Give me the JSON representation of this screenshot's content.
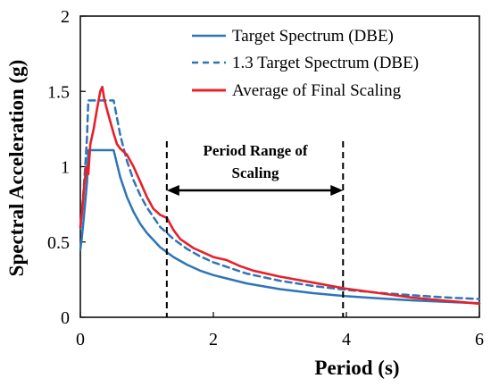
{
  "chart_data": {
    "type": "line",
    "title": "",
    "xlabel": "Period (s)",
    "ylabel": "Spectral Acceleration (g)",
    "xlim": [
      0,
      6
    ],
    "ylim": [
      0,
      2
    ],
    "x_ticks": [
      "0",
      "2",
      "4",
      "6"
    ],
    "y_ticks": [
      "0",
      "0.5",
      "1",
      "1.5",
      "2"
    ],
    "grid": false,
    "legend_position": "top-right",
    "annotation": {
      "text_line1": "Period Range of",
      "text_line2": "Scaling",
      "range": [
        1.3,
        3.95
      ]
    },
    "series": [
      {
        "name": "Target Spectrum (DBE)",
        "color": "#2e75b6",
        "style": "solid",
        "x": [
          0,
          0.02,
          0.05,
          0.08,
          0.1,
          0.12,
          0.15,
          0.2,
          0.3,
          0.4,
          0.5,
          0.6,
          0.7,
          0.8,
          0.9,
          1.0,
          1.2,
          1.4,
          1.6,
          1.8,
          2.0,
          2.5,
          3.0,
          3.5,
          4.0,
          4.5,
          5.0,
          5.5,
          6.0
        ],
        "y": [
          0.45,
          0.52,
          0.65,
          0.8,
          0.9,
          1.11,
          1.11,
          1.11,
          1.11,
          1.11,
          1.11,
          0.93,
          0.8,
          0.7,
          0.62,
          0.56,
          0.465,
          0.4,
          0.35,
          0.31,
          0.28,
          0.225,
          0.187,
          0.16,
          0.14,
          0.125,
          0.112,
          0.102,
          0.093
        ]
      },
      {
        "name": "1.3 Target Spectrum (DBE)",
        "color": "#2e75b6",
        "style": "dashed",
        "x": [
          0,
          0.02,
          0.05,
          0.08,
          0.1,
          0.12,
          0.15,
          0.2,
          0.3,
          0.4,
          0.5,
          0.6,
          0.7,
          0.8,
          0.9,
          1.0,
          1.2,
          1.4,
          1.6,
          1.8,
          2.0,
          2.5,
          3.0,
          3.5,
          4.0,
          4.5,
          5.0,
          5.5,
          6.0
        ],
        "y": [
          0.59,
          0.68,
          0.85,
          1.05,
          1.2,
          1.44,
          1.44,
          1.44,
          1.44,
          1.44,
          1.44,
          1.21,
          1.04,
          0.91,
          0.81,
          0.73,
          0.6,
          0.52,
          0.455,
          0.405,
          0.365,
          0.29,
          0.243,
          0.208,
          0.182,
          0.162,
          0.146,
          0.132,
          0.121
        ]
      },
      {
        "name": "Average of Final Scaling",
        "color": "#e8202a",
        "style": "solid",
        "x": [
          0,
          0.03,
          0.06,
          0.09,
          0.12,
          0.15,
          0.2,
          0.25,
          0.3,
          0.33,
          0.36,
          0.4,
          0.45,
          0.5,
          0.55,
          0.6,
          0.7,
          0.8,
          0.9,
          1.0,
          1.1,
          1.2,
          1.3,
          1.4,
          1.5,
          1.7,
          1.9,
          2.0,
          2.2,
          2.4,
          2.6,
          3.0,
          3.5,
          4.0,
          4.5,
          5.0,
          5.5,
          6.0
        ],
        "y": [
          0.6,
          0.72,
          0.88,
          1.0,
          0.95,
          1.15,
          1.25,
          1.38,
          1.5,
          1.53,
          1.45,
          1.38,
          1.3,
          1.22,
          1.15,
          1.12,
          1.08,
          1.0,
          0.9,
          0.8,
          0.72,
          0.68,
          0.66,
          0.58,
          0.52,
          0.46,
          0.42,
          0.4,
          0.38,
          0.34,
          0.31,
          0.27,
          0.23,
          0.19,
          0.16,
          0.13,
          0.11,
          0.09
        ]
      }
    ]
  }
}
